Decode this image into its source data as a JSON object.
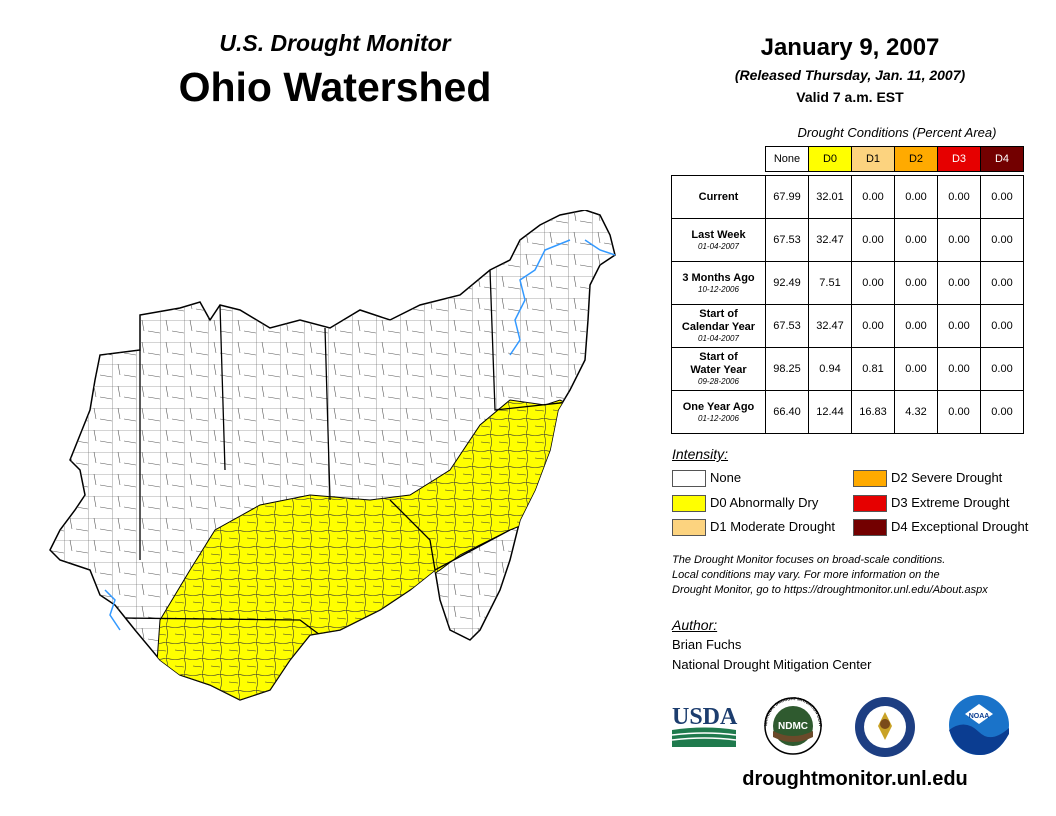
{
  "header": {
    "subtitle": "U.S. Drought Monitor",
    "title": "Ohio Watershed",
    "date": "January 9, 2007",
    "released": "(Released Thursday, Jan. 11, 2007)",
    "valid": "Valid 7 a.m. EST"
  },
  "table": {
    "caption": "Drought Conditions (Percent Area)",
    "columns": [
      {
        "label": "None",
        "color": "#ffffff",
        "text": "#000000"
      },
      {
        "label": "D0",
        "color": "#ffff00",
        "text": "#000000"
      },
      {
        "label": "D1",
        "color": "#fcd37f",
        "text": "#000000"
      },
      {
        "label": "D2",
        "color": "#ffaa00",
        "text": "#000000"
      },
      {
        "label": "D3",
        "color": "#e60000",
        "text": "#ffffff"
      },
      {
        "label": "D4",
        "color": "#730000",
        "text": "#ffffff"
      }
    ],
    "rows": [
      {
        "label1": "Current",
        "label2": "",
        "date": "",
        "values": [
          "67.99",
          "32.01",
          "0.00",
          "0.00",
          "0.00",
          "0.00"
        ]
      },
      {
        "label1": "Last Week",
        "label2": "",
        "date": "01-04-2007",
        "values": [
          "67.53",
          "32.47",
          "0.00",
          "0.00",
          "0.00",
          "0.00"
        ]
      },
      {
        "label1": "3 Months Ago",
        "label2": "",
        "date": "10-12-2006",
        "values": [
          "92.49",
          "7.51",
          "0.00",
          "0.00",
          "0.00",
          "0.00"
        ]
      },
      {
        "label1": "Start of",
        "label2": "Calendar Year",
        "date": "01-04-2007",
        "values": [
          "67.53",
          "32.47",
          "0.00",
          "0.00",
          "0.00",
          "0.00"
        ]
      },
      {
        "label1": "Start of",
        "label2": "Water Year",
        "date": "09-28-2006",
        "values": [
          "98.25",
          "0.94",
          "0.81",
          "0.00",
          "0.00",
          "0.00"
        ]
      },
      {
        "label1": "One Year Ago",
        "label2": "",
        "date": "01-12-2006",
        "values": [
          "66.40",
          "12.44",
          "16.83",
          "4.32",
          "0.00",
          "0.00"
        ]
      }
    ]
  },
  "legend": {
    "title": "Intensity:",
    "items": [
      {
        "label": "None",
        "color": "#ffffff"
      },
      {
        "label": "D0 Abnormally Dry",
        "color": "#ffff00"
      },
      {
        "label": "D1 Moderate Drought",
        "color": "#fcd37f"
      },
      {
        "label": "D2 Severe Drought",
        "color": "#ffaa00"
      },
      {
        "label": "D3 Extreme Drought",
        "color": "#e60000"
      },
      {
        "label": "D4 Exceptional Drought",
        "color": "#730000"
      }
    ]
  },
  "note": {
    "line1": "The Drought Monitor focuses on broad-scale conditions.",
    "line2": "Local conditions may vary. For more information on the",
    "line3": "Drought Monitor, go to https://droughtmonitor.unl.edu/About.aspx"
  },
  "author": {
    "title": "Author:",
    "name": "Brian Fuchs",
    "org": "National Drought Mitigation Center"
  },
  "logos": {
    "usda": "USDA",
    "ndmc": "NDMC",
    "ndmc_ring": "NATIONAL DROUGHT MITIGATION CENTER",
    "noaa": "NOAA"
  },
  "map": {
    "drought_color": "#ffff00",
    "river_color": "#3399ff"
  },
  "footer": {
    "url": "droughtmonitor.unl.edu"
  }
}
